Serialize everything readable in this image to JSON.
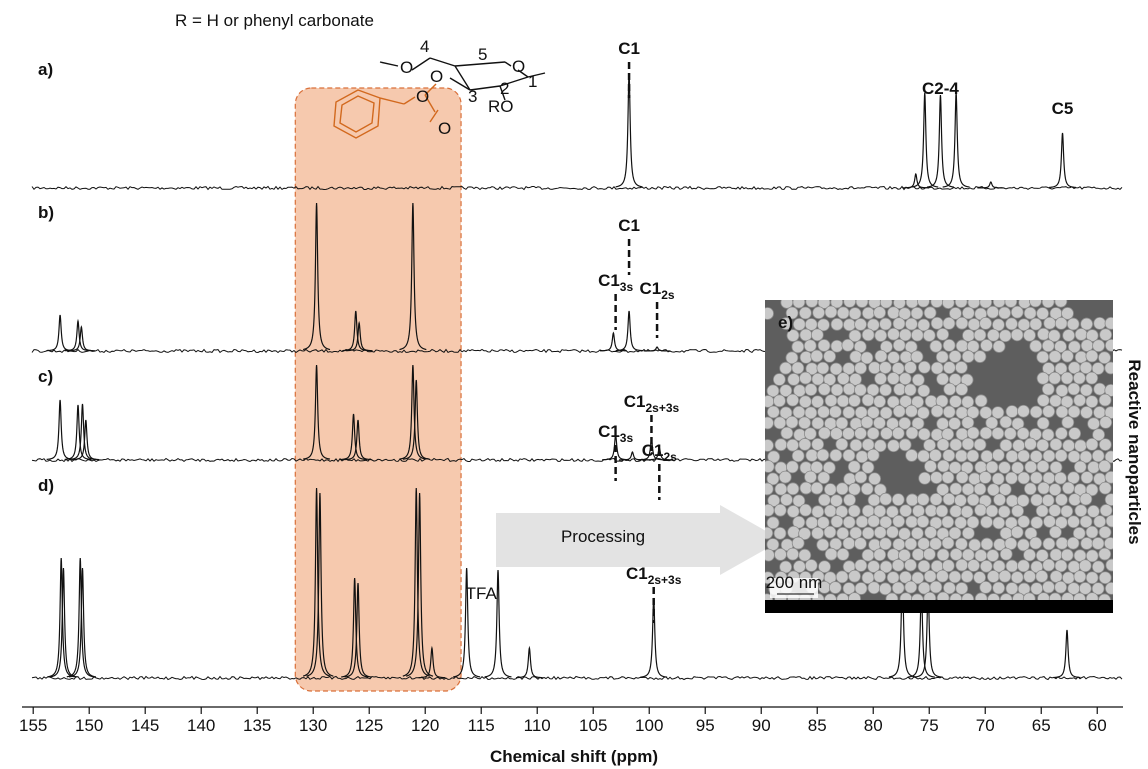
{
  "chart_data": {
    "type": "nmr-stack",
    "xlabel": "Chemical shift (ppm)",
    "xlim": [
      156,
      57.7
    ],
    "xticks": [
      155,
      150,
      145,
      140,
      135,
      130,
      125,
      120,
      115,
      110,
      105,
      100,
      95,
      90,
      85,
      80,
      75,
      70,
      65,
      60
    ],
    "line_color": "#111111",
    "highlight": {
      "from": 131.6,
      "to": 116.8,
      "color": "#f6c9ae",
      "border": "#d9703a"
    },
    "structure": {
      "caption": "R = H or phenyl carbonate",
      "labels": [
        "O",
        "4",
        "5",
        "O",
        "1",
        "O",
        "3",
        "2",
        "RO",
        "O",
        "O"
      ]
    },
    "spectra": [
      {
        "name": "a)",
        "peaks": [
          {
            "x": 101.8,
            "height": 115
          },
          {
            "x": 76.2,
            "height": 14
          },
          {
            "x": 75.4,
            "height": 95
          },
          {
            "x": 74.0,
            "height": 93
          },
          {
            "x": 72.6,
            "height": 95
          },
          {
            "x": 69.5,
            "height": 6
          },
          {
            "x": 63.1,
            "height": 55
          }
        ],
        "annotations": [
          {
            "main": "C1",
            "sub": null,
            "x": 101.8,
            "height": 128
          },
          {
            "main": "C2-4",
            "sub": null,
            "x": 74.0,
            "height": 88
          },
          {
            "main": "C5",
            "sub": null,
            "x": 63.1,
            "height": 68
          }
        ]
      },
      {
        "name": "b)",
        "peaks": [
          {
            "x": 152.6,
            "height": 36
          },
          {
            "x": 151.0,
            "height": 30
          },
          {
            "x": 150.7,
            "height": 24
          },
          {
            "x": 129.7,
            "height": 148
          },
          {
            "x": 126.2,
            "height": 40
          },
          {
            "x": 125.9,
            "height": 28
          },
          {
            "x": 121.1,
            "height": 148
          },
          {
            "x": 103.2,
            "height": 18
          },
          {
            "x": 101.8,
            "height": 40
          },
          {
            "x": 99.3,
            "height": 4
          }
        ],
        "annotations": [
          {
            "main": "C1",
            "sub": null,
            "x": 101.8,
            "height": 114
          },
          {
            "main": "C1",
            "sub": "3s",
            "x": 103.0,
            "height": 59
          },
          {
            "main": "C1",
            "sub": "2s",
            "x": 99.3,
            "height": 51
          }
        ]
      },
      {
        "name": "c)",
        "peaks": [
          {
            "x": 152.6,
            "height": 60
          },
          {
            "x": 151.0,
            "height": 55
          },
          {
            "x": 150.6,
            "height": 56
          },
          {
            "x": 150.3,
            "height": 40
          },
          {
            "x": 129.7,
            "height": 95
          },
          {
            "x": 126.4,
            "height": 46
          },
          {
            "x": 126.0,
            "height": 40
          },
          {
            "x": 121.1,
            "height": 95
          },
          {
            "x": 120.8,
            "height": 80
          },
          {
            "x": 103.0,
            "height": 25
          },
          {
            "x": 101.5,
            "height": 8
          },
          {
            "x": 99.8,
            "height": 20
          },
          {
            "x": 99.1,
            "height": 12
          }
        ],
        "annotations": [
          {
            "main": "C1",
            "sub": "2s+3s",
            "x": 99.8,
            "height": 47
          },
          {
            "main": "C1",
            "sub": "3s",
            "x": 103.0,
            "height": 17
          },
          {
            "main": "C1",
            "sub": "2s",
            "x": 99.1,
            "height": -2
          }
        ]
      },
      {
        "name": "d)",
        "peaks": [
          {
            "x": 152.5,
            "height": 120
          },
          {
            "x": 152.3,
            "height": 110
          },
          {
            "x": 150.8,
            "height": 120
          },
          {
            "x": 150.6,
            "height": 110
          },
          {
            "x": 129.7,
            "height": 190
          },
          {
            "x": 129.4,
            "height": 185
          },
          {
            "x": 126.3,
            "height": 100
          },
          {
            "x": 126.0,
            "height": 95
          },
          {
            "x": 120.8,
            "height": 190
          },
          {
            "x": 120.5,
            "height": 185
          },
          {
            "x": 119.4,
            "height": 30
          },
          {
            "x": 116.3,
            "height": 110
          },
          {
            "x": 113.5,
            "height": 108
          },
          {
            "x": 110.7,
            "height": 30
          },
          {
            "x": 99.6,
            "height": 80
          },
          {
            "x": 77.4,
            "height": 105
          },
          {
            "x": 75.7,
            "height": 90
          },
          {
            "x": 75.1,
            "height": 90
          },
          {
            "x": 62.7,
            "height": 48
          }
        ],
        "annotations": [
          {
            "main": "TFA",
            "sub": null,
            "x": 115.0,
            "height": 73
          },
          {
            "main": "C1",
            "sub": "2s+3s",
            "x": 99.6,
            "height": 93
          }
        ]
      }
    ],
    "arrow_label": "Processing",
    "inset": {
      "label": "e)",
      "scale": "200 nm",
      "side_label": "Reactive nanoparticles"
    }
  }
}
